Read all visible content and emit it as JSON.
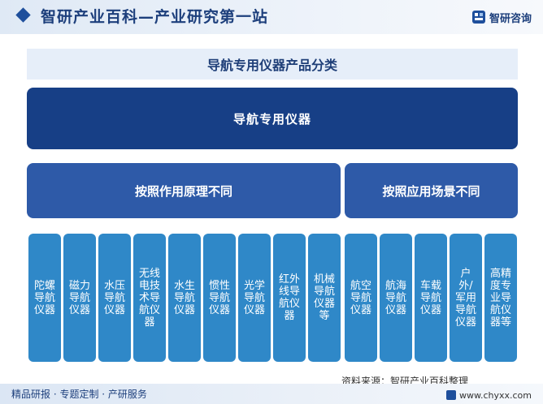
{
  "header": {
    "site_title": "智研产业百科—产业研究第一站",
    "brand_name": "智研咨询"
  },
  "diagram": {
    "title": "导航专用仪器产品分类",
    "root": "导航专用仪器",
    "groups": [
      {
        "label": "按照作用原理不同"
      },
      {
        "label": "按照应用场景不同"
      }
    ],
    "leaves": [
      "陀螺导航仪器",
      "磁力导航仪器",
      "水压导航仪器",
      "无线电技术导航仪器",
      "水生导航仪器",
      "惯性导航仪器",
      "光学导航仪器",
      "红外线导航仪器",
      "机械导航仪器等",
      "航空导航仪器",
      "航海导航仪器",
      "车载导航仪器",
      "户外/军用导航仪器",
      "高精度专业导航仪器等"
    ]
  },
  "footer": {
    "source": "资料来源：智研产业百科整理",
    "tagline": "精品研报 · 专题定制 · 产研服务",
    "url": "www.chyxx.com"
  },
  "colors": {
    "root_bg": "#173f86",
    "group_bg": "#2e5aa8",
    "leaf_bg": "#2f88c8",
    "title_bar_bg": "#e6eef9"
  }
}
